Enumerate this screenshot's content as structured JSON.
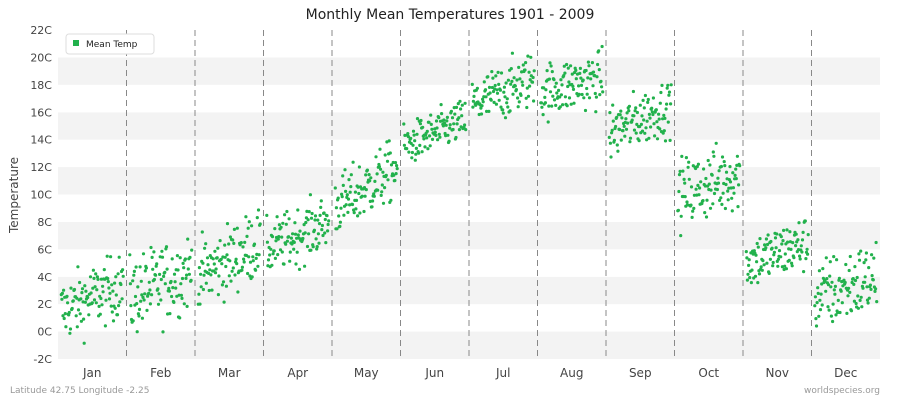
{
  "chart_data": {
    "type": "scatter",
    "title": "Monthly Mean Temperatures 1901 - 2009",
    "xlabel": "",
    "ylabel": "Temperature",
    "y_unit": "C",
    "ylim": [
      -2,
      22
    ],
    "yticks": [
      "-2C",
      "0C",
      "2C",
      "4C",
      "6C",
      "8C",
      "10C",
      "12C",
      "14C",
      "16C",
      "18C",
      "20C",
      "22C"
    ],
    "categories": [
      "Jan",
      "Feb",
      "Mar",
      "Apr",
      "May",
      "Jun",
      "Jul",
      "Aug",
      "Sep",
      "Oct",
      "Nov",
      "Dec"
    ],
    "series": [
      {
        "name": "Mean Temp",
        "color": "#22b14c",
        "points_per_month": 109,
        "monthly_summary": [
          {
            "month": "Jan",
            "start_mean": 1.5,
            "end_mean": 3.5,
            "min": -1.5,
            "max": 5.5
          },
          {
            "month": "Feb",
            "start_mean": 2.5,
            "end_mean": 4.5,
            "min": -0.5,
            "max": 8.0
          },
          {
            "month": "Mar",
            "start_mean": 4.0,
            "end_mean": 6.5,
            "min": 2.0,
            "max": 9.5
          },
          {
            "month": "Apr",
            "start_mean": 6.0,
            "end_mean": 8.0,
            "min": 4.0,
            "max": 10.0
          },
          {
            "month": "May",
            "start_mean": 9.0,
            "end_mean": 12.0,
            "min": 7.5,
            "max": 14.0
          },
          {
            "month": "Jun",
            "start_mean": 13.5,
            "end_mean": 15.5,
            "min": 12.5,
            "max": 17.0
          },
          {
            "month": "Jul",
            "start_mean": 16.5,
            "end_mean": 18.5,
            "min": 15.5,
            "max": 21.5
          },
          {
            "month": "Aug",
            "start_mean": 17.5,
            "end_mean": 18.5,
            "min": 15.0,
            "max": 21.0
          },
          {
            "month": "Sep",
            "start_mean": 14.5,
            "end_mean": 16.5,
            "min": 12.0,
            "max": 18.0
          },
          {
            "month": "Oct",
            "start_mean": 10.0,
            "end_mean": 11.5,
            "min": 7.0,
            "max": 14.5
          },
          {
            "month": "Nov",
            "start_mean": 5.0,
            "end_mean": 6.5,
            "min": 3.0,
            "max": 9.0
          },
          {
            "month": "Dec",
            "start_mean": 2.5,
            "end_mean": 4.0,
            "min": -1.0,
            "max": 7.0
          }
        ]
      }
    ],
    "grid": true,
    "legend_position": "top-left",
    "month_dividers": "dashed"
  },
  "footer": {
    "left": "Latitude 42.75 Longitude -2.25",
    "right": "worldspecies.org"
  },
  "colors": {
    "band_light": "#ffffff",
    "band_dark": "#f3f3f3",
    "divider": "#888888",
    "text": "#333333",
    "muted_text": "#999999"
  }
}
